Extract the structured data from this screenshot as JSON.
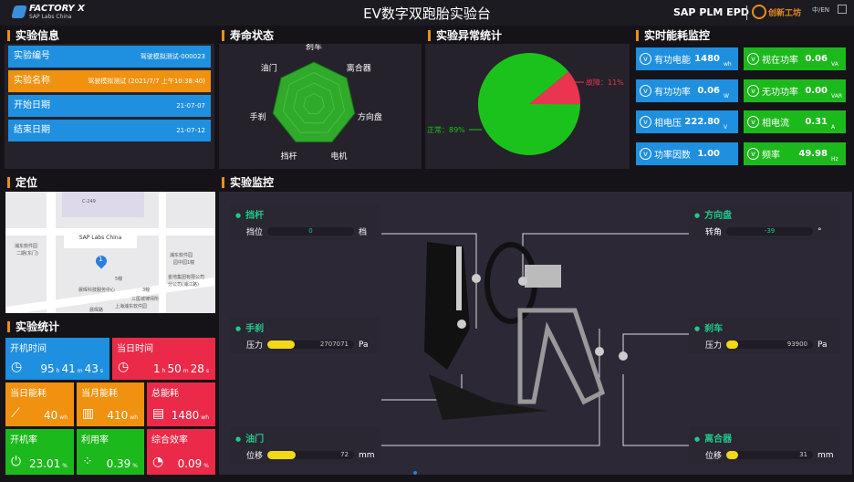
{
  "header": {
    "logo": "FACTORY X",
    "logo_sub": "SAP Labs China",
    "title": "EV数字双跑胎实验台",
    "brand": "SAP PLM EPD",
    "partner": "创新工坊",
    "lang": "中/EN"
  },
  "info": {
    "title": "实验信息",
    "rows": [
      {
        "label": "实验编号",
        "value": "驾驶模拟测试-000023"
      },
      {
        "label": "实验名称",
        "value": "驾驶模拟测试 (2021/7/7 上午10:38:40)"
      },
      {
        "label": "开始日期",
        "value": "21-07-07"
      },
      {
        "label": "结束日期",
        "value": "21-07-12"
      }
    ]
  },
  "life": {
    "title": "寿命状态",
    "axes": [
      "刹车",
      "离合器",
      "方向盘",
      "电机",
      "挡杆",
      "手刹",
      "油门"
    ]
  },
  "anomaly": {
    "title": "实验异常统计",
    "slices": [
      {
        "label": "正常：89%",
        "value": 89,
        "color": "#1cc21c"
      },
      {
        "label": "故障：11%",
        "value": 11,
        "color": "#ea3550"
      }
    ]
  },
  "energy": {
    "title": "实时能耗监控",
    "tiles": [
      {
        "label": "有功电能",
        "value": "1480",
        "unit": "wh",
        "color": "#1f8fe0"
      },
      {
        "label": "视在功率",
        "value": "0.06",
        "unit": "VA",
        "color": "#1cb91c"
      },
      {
        "label": "有功功率",
        "value": "0.06",
        "unit": "W",
        "color": "#1f8fe0"
      },
      {
        "label": "无功功率",
        "value": "0.00",
        "unit": "VAR",
        "color": "#1cb91c"
      },
      {
        "label": "相电压",
        "value": "222.80",
        "unit": "V",
        "color": "#1f8fe0"
      },
      {
        "label": "相电流",
        "value": "0.31",
        "unit": "A",
        "color": "#1cb91c"
      },
      {
        "label": "功率因数",
        "value": "1.00",
        "unit": "",
        "color": "#1f8fe0"
      },
      {
        "label": "频率",
        "value": "49.98",
        "unit": "Hz",
        "color": "#1cb91c"
      }
    ]
  },
  "location": {
    "title": "定位",
    "marker": "SAP Labs China",
    "pin": "1",
    "labels": [
      "C-249",
      "浦东软件园",
      "二期(东门)",
      "浦东软件园",
      "园中园1幢",
      "金地集团有限公司",
      "分公司(浦江路)",
      "三医城律师所",
      "上海浦东软件园",
      "晨晖科技服务中心",
      "晨晖路",
      "3幢",
      "5幢"
    ]
  },
  "stats": {
    "title": "实验统计",
    "uptime": {
      "label": "开机时间",
      "h": "95",
      "m": "41",
      "s": "43"
    },
    "today_time": {
      "label": "当日时间",
      "h": "1",
      "m": "50",
      "s": "28"
    },
    "units": {
      "h": "h",
      "m": "m",
      "s": "s",
      "wh": "wh",
      "pct": "%"
    },
    "today_energy": {
      "label": "当日能耗",
      "value": "40"
    },
    "month_energy": {
      "label": "当月能耗",
      "value": "410"
    },
    "total_energy": {
      "label": "总能耗",
      "value": "1480"
    },
    "on_rate": {
      "label": "开机率",
      "value": "23.01"
    },
    "util_rate": {
      "label": "利用率",
      "value": "0.39"
    },
    "efficiency": {
      "label": "综合效率",
      "value": "0.09"
    }
  },
  "monitor": {
    "title": "实验监控",
    "sensors": [
      {
        "name": "挡杆",
        "label": "挡位",
        "value": "0",
        "unit": "档",
        "fill": 0
      },
      {
        "name": "手刹",
        "label": "压力",
        "value": "2707071",
        "unit": "Pa",
        "fill": 0.7
      },
      {
        "name": "油门",
        "label": "位移",
        "value": "72",
        "unit": "mm",
        "fill": 0.72
      },
      {
        "name": "方向盘",
        "label": "转角",
        "value": "-39",
        "unit": "°",
        "fill": 0
      },
      {
        "name": "刹车",
        "label": "压力",
        "value": "93900",
        "unit": "Pa",
        "fill": 0.3
      },
      {
        "name": "离合器",
        "label": "位移",
        "value": "31",
        "unit": "mm",
        "fill": 0.31
      }
    ]
  }
}
